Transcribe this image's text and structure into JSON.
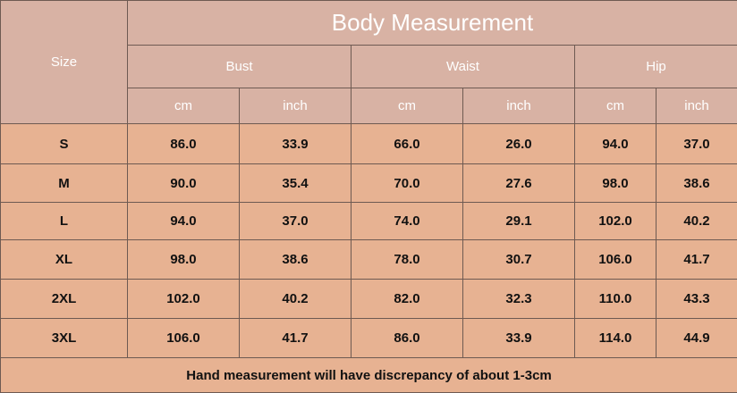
{
  "table": {
    "title": "Body Measurement",
    "size_header": "Size",
    "groups": [
      "Bust",
      "Waist",
      "Hip"
    ],
    "units": [
      "cm",
      "inch",
      "cm",
      "inch",
      "cm",
      "inch"
    ],
    "rows": [
      [
        "S",
        "86.0",
        "33.9",
        "66.0",
        "26.0",
        "94.0",
        "37.0"
      ],
      [
        "M",
        "90.0",
        "35.4",
        "70.0",
        "27.6",
        "98.0",
        "38.6"
      ],
      [
        "L",
        "94.0",
        "37.0",
        "74.0",
        "29.1",
        "102.0",
        "40.2"
      ],
      [
        "XL",
        "98.0",
        "38.6",
        "78.0",
        "30.7",
        "106.0",
        "41.7"
      ],
      [
        "2XL",
        "102.0",
        "40.2",
        "82.0",
        "32.3",
        "110.0",
        "43.3"
      ],
      [
        "3XL",
        "106.0",
        "41.7",
        "86.0",
        "33.9",
        "114.0",
        "44.9"
      ]
    ],
    "footnote": "Hand measurement will have discrepancy of about 1-3cm"
  }
}
